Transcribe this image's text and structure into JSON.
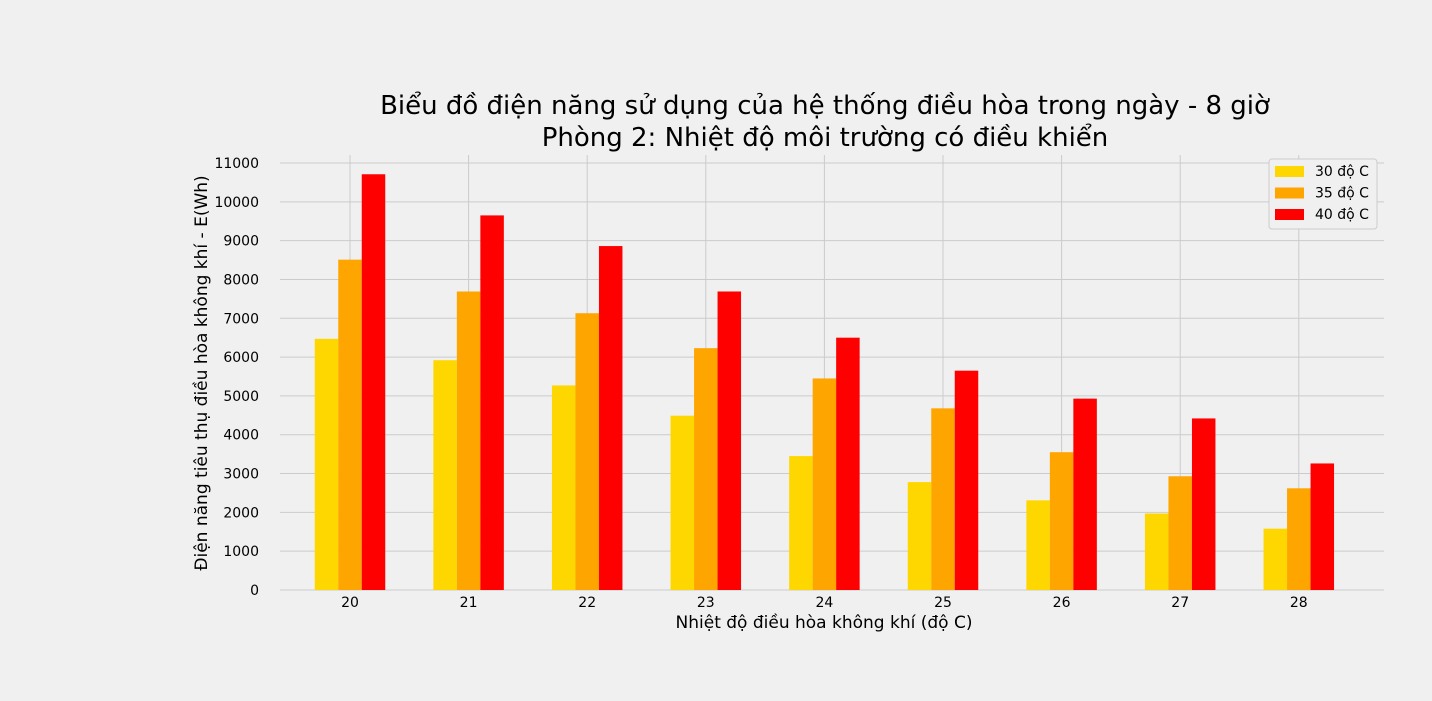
{
  "chart_data": {
    "type": "bar",
    "title": "Biểu đồ điện năng sử dụng của hệ thống điều hòa trong ngày - 8 giờ",
    "subtitle": "Phòng 2: Nhiệt độ môi trường có điều khiển",
    "xlabel": "Nhiệt độ điều hòa không khí (độ C)",
    "ylabel": "Điện năng tiêu thụ điều hòa không khí - E(Wh)",
    "categories": [
      "20",
      "21",
      "22",
      "23",
      "24",
      "25",
      "26",
      "27",
      "28"
    ],
    "ylim": [
      0,
      11000
    ],
    "yticks": [
      0,
      1000,
      2000,
      3000,
      4000,
      5000,
      6000,
      7000,
      8000,
      9000,
      10000,
      11000
    ],
    "grid": true,
    "legend_position": "top-right",
    "series": [
      {
        "name": "30 độ C",
        "color": "#FFD700",
        "values": [
          6470,
          5920,
          5270,
          4490,
          3450,
          2780,
          2310,
          1970,
          1580
        ]
      },
      {
        "name": "35 độ C",
        "color": "#FFA500",
        "values": [
          8510,
          7690,
          7130,
          6230,
          5450,
          4680,
          3550,
          2930,
          2620
        ]
      },
      {
        "name": "40 độ C",
        "color": "#FF0000",
        "values": [
          10710,
          9650,
          8860,
          7690,
          6500,
          5650,
          4930,
          4420,
          3260
        ]
      }
    ]
  }
}
